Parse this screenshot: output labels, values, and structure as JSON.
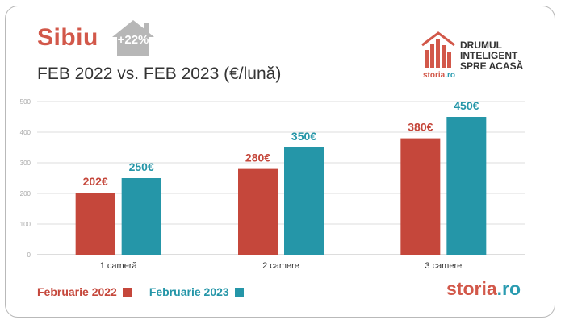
{
  "header": {
    "city": "Sibiu",
    "change_badge": "+22%",
    "subtitle": "FEB 2022 vs. FEB 2023 (€/lună)"
  },
  "brand": {
    "tagline": [
      "DRUMUL",
      "INTELIGENT",
      "SPRE ACASĂ"
    ],
    "small_logo_main": "storia",
    "small_logo_tld": ".ro",
    "footer_logo_main": "storia",
    "footer_logo_tld": ".ro"
  },
  "colors": {
    "series_2022": "#c5473b",
    "series_2023": "#2596a8",
    "city_title": "#d2584a",
    "grid": "#dddddd",
    "axis_text": "#aaaaaa"
  },
  "chart_data": {
    "type": "bar",
    "categories": [
      "1 cameră",
      "2 camere",
      "3 camere"
    ],
    "series": [
      {
        "name": "Februarie 2022",
        "values": [
          202,
          280,
          380
        ],
        "labels": [
          "202€",
          "280€",
          "380€"
        ]
      },
      {
        "name": "Februarie 2023",
        "values": [
          250,
          350,
          450
        ],
        "labels": [
          "250€",
          "350€",
          "450€"
        ]
      }
    ],
    "ylim": [
      0,
      500
    ],
    "yticks": [
      0,
      100,
      200,
      300,
      400,
      500
    ],
    "grid": true,
    "legend_position": "bottom-left"
  }
}
